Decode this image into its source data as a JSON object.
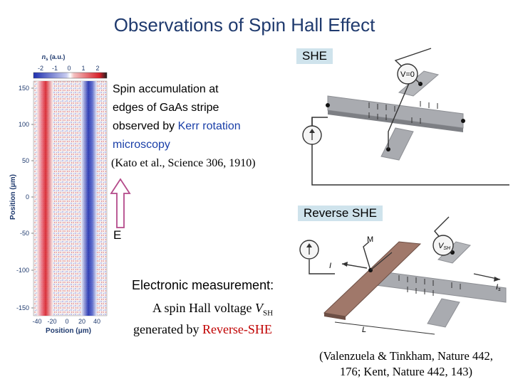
{
  "slide": {
    "title": "Observations of Spin Hall Effect"
  },
  "kerr_image": {
    "colorbar_label": "n",
    "colorbar_label_sub": "s",
    "colorbar_unit": "(a.u.)",
    "colorbar_ticks": [
      "-2",
      "-1",
      "0",
      "1",
      "2"
    ],
    "y_axis_label": "Position (μm)",
    "y_ticks": [
      "150",
      "100",
      "50",
      "0",
      "-50",
      "-100",
      "-150"
    ],
    "x_axis_label": "Position (μm)",
    "x_ticks": [
      "-40",
      "-20",
      "0",
      "20",
      "40"
    ]
  },
  "description": {
    "line1": "Spin accumulation at",
    "line2": "edges of GaAs stripe",
    "line3_prefix": "observed by ",
    "line3_highlight": "Kerr rotation",
    "line4": "microscopy",
    "citation": "(Kato et al., Science 306, 1910)",
    "field_label": "E"
  },
  "she_panel": {
    "label": "SHE",
    "meter_label": "V=0"
  },
  "reverse_panel": {
    "label": "Reverse SHE",
    "current_label_left": "I",
    "current_label_right": "I",
    "current_sub_right": "s",
    "contact_label": "M",
    "voltage_label": "V",
    "voltage_sub": "SH",
    "length_label": "L"
  },
  "electronic": {
    "heading": "Electronic measurement:",
    "line1_prefix": "A spin Hall voltage ",
    "line1_var": "V",
    "line1_sub": "SH",
    "line2_prefix": "generated by ",
    "line2_highlight": "Reverse-SHE"
  },
  "references": {
    "line1": "(Valenzuela & Tinkham, Nature 442,",
    "line2": "176;  Kent, Nature 442, 143)"
  },
  "colors": {
    "title": "#1f3a6e",
    "highlight_blue": "#1a3fa8",
    "highlight_red": "#c00000",
    "label_bg": "#cfe3ec",
    "spin_red": "#d8202a",
    "spin_blue": "#1e2fb0"
  }
}
